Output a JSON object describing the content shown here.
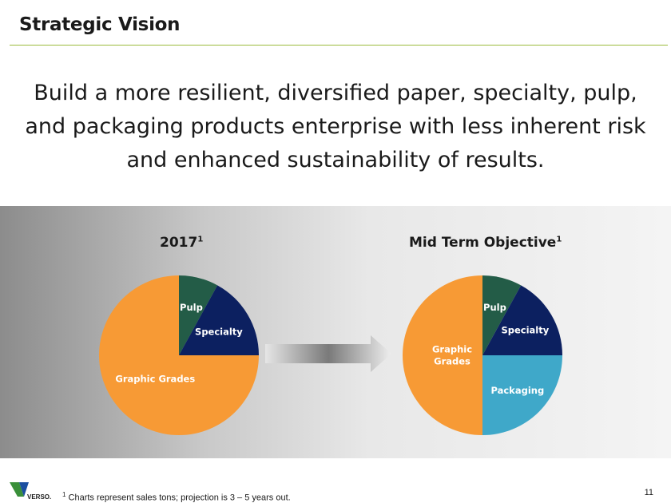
{
  "slide": {
    "title": "Strategic Vision",
    "vision_statement": "Build a more resilient, diversified paper, specialty, pulp, and packaging products enterprise with less inherent risk and enhanced sustainability of results.",
    "footnote_marker": "1",
    "footnote_text": " Charts represent sales tons; projection is 3 – 5 years out.",
    "page_number": "11",
    "logo_text": "VERSO."
  },
  "colors": {
    "pulp": "#235c47",
    "specialty": "#0c2060",
    "packaging": "#3fa8c9",
    "graphic": "#f79a35",
    "rule": "#9bbb3c"
  },
  "chart_data": [
    {
      "type": "pie",
      "title": "2017",
      "title_superscript": "1",
      "slices": [
        {
          "label": "Pulp",
          "value": 8,
          "color": "#235c47"
        },
        {
          "label": "Specialty",
          "value": 17,
          "color": "#0c2060"
        },
        {
          "label": "Graphic Grades",
          "value": 75,
          "color": "#f79a35"
        }
      ]
    },
    {
      "type": "pie",
      "title": "Mid Term Objective",
      "title_superscript": "1",
      "slices": [
        {
          "label": "Pulp",
          "value": 8,
          "color": "#235c47"
        },
        {
          "label": "Specialty",
          "value": 17,
          "color": "#0c2060"
        },
        {
          "label": "Packaging",
          "value": 25,
          "color": "#3fa8c9"
        },
        {
          "label": "Graphic Grades",
          "value": 50,
          "color": "#f79a35"
        }
      ]
    }
  ]
}
